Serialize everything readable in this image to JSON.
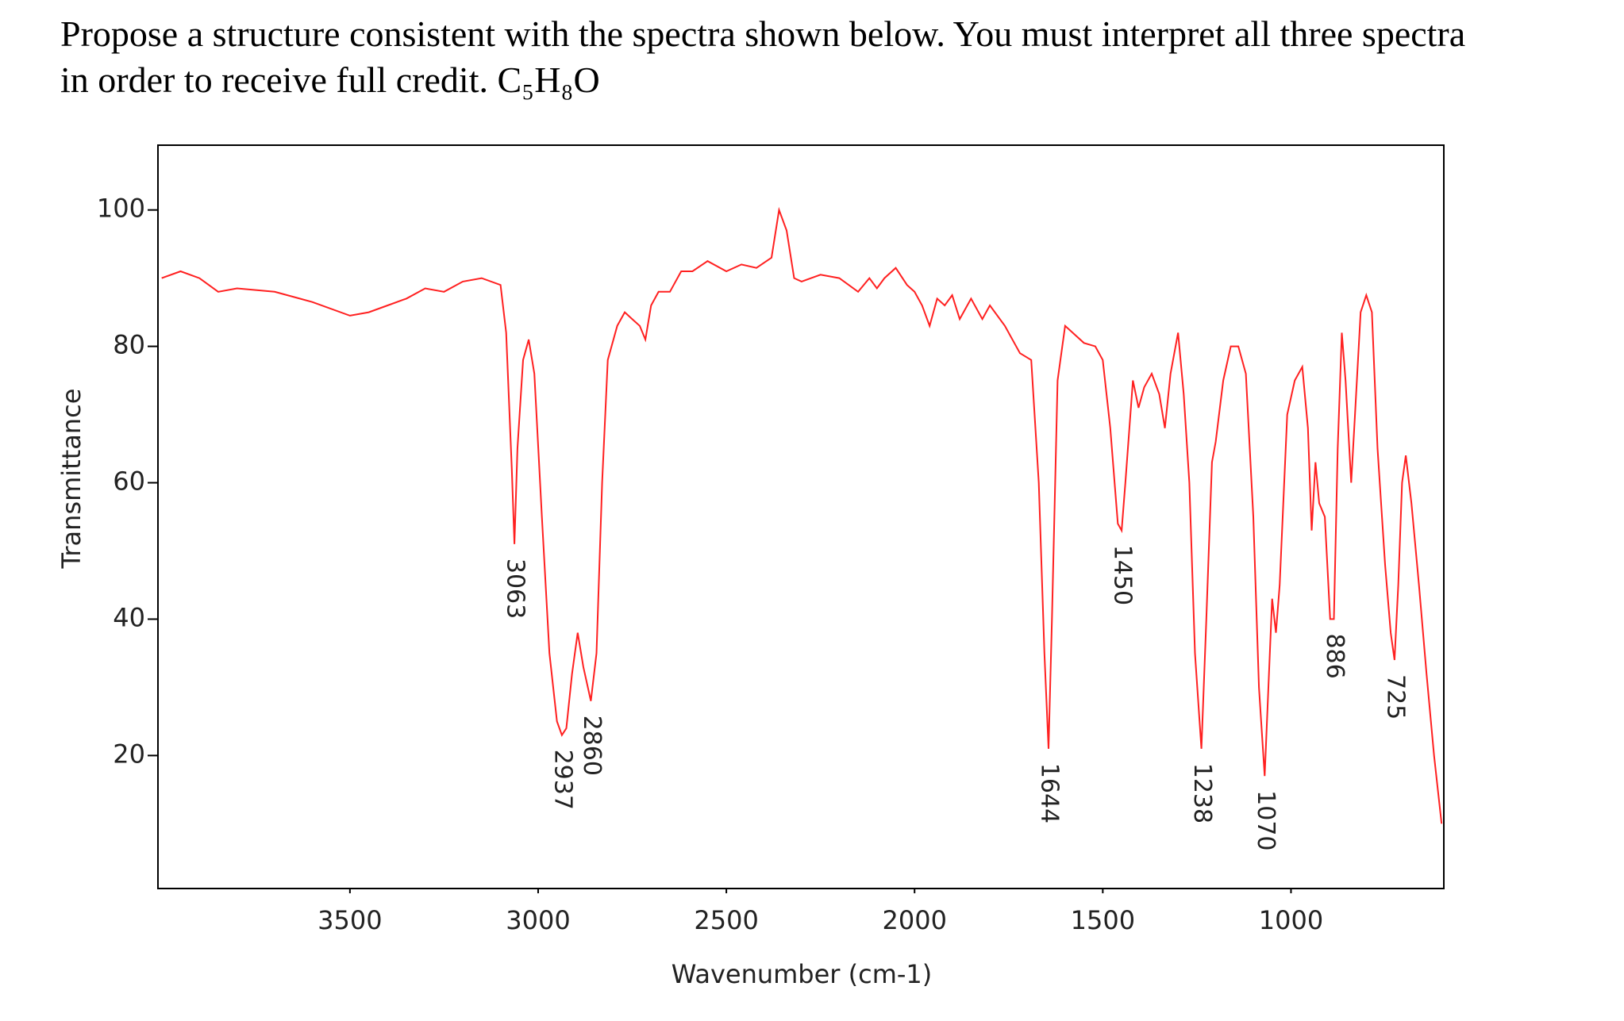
{
  "question_lines": [
    "Propose a structure consistent with the spectra shown below. You must interpret all three spectra",
    "in order to receive full credit. C₅H₈O"
  ],
  "chart_data": {
    "type": "line",
    "x_label": "Wavenumber (cm-1)",
    "y_label": "Transmittance",
    "xlim": [
      4010,
      594
    ],
    "ylim": [
      0.5,
      109.5
    ],
    "xticks": [
      3500,
      3000,
      2500,
      2000,
      1500,
      1000
    ],
    "yticks": [
      20,
      40,
      60,
      80,
      100
    ],
    "x": [
      4000,
      3950,
      3900,
      3850,
      3800,
      3700,
      3600,
      3500,
      3450,
      3400,
      3350,
      3300,
      3250,
      3200,
      3150,
      3100,
      3085,
      3070,
      3063,
      3055,
      3040,
      3025,
      3010,
      2990,
      2970,
      2950,
      2937,
      2925,
      2910,
      2895,
      2880,
      2860,
      2845,
      2830,
      2815,
      2790,
      2770,
      2750,
      2730,
      2715,
      2700,
      2680,
      2650,
      2620,
      2590,
      2550,
      2500,
      2460,
      2420,
      2380,
      2360,
      2340,
      2320,
      2300,
      2250,
      2200,
      2150,
      2120,
      2100,
      2080,
      2050,
      2020,
      2000,
      1980,
      1960,
      1940,
      1920,
      1900,
      1880,
      1850,
      1820,
      1800,
      1760,
      1720,
      1690,
      1670,
      1655,
      1644,
      1635,
      1620,
      1600,
      1580,
      1550,
      1520,
      1500,
      1480,
      1460,
      1450,
      1440,
      1420,
      1405,
      1390,
      1370,
      1350,
      1335,
      1320,
      1300,
      1285,
      1270,
      1255,
      1238,
      1225,
      1210,
      1200,
      1180,
      1160,
      1140,
      1120,
      1100,
      1085,
      1070,
      1060,
      1050,
      1040,
      1030,
      1010,
      990,
      970,
      955,
      945,
      935,
      925,
      910,
      896,
      886,
      876,
      865,
      855,
      840,
      830,
      815,
      800,
      785,
      770,
      750,
      735,
      725,
      715,
      705,
      695,
      680,
      660,
      640,
      620,
      600
    ],
    "series": [
      {
        "name": "Transmittance",
        "color": "#ff2020",
        "values": [
          90,
          91,
          90,
          88,
          88.5,
          88,
          86.5,
          84.5,
          85,
          86,
          87,
          88.5,
          88,
          89.5,
          90,
          89,
          82,
          62,
          51,
          65,
          78,
          81,
          76,
          55,
          35,
          25,
          23,
          24,
          32,
          38,
          33,
          28,
          35,
          60,
          78,
          83,
          85,
          84,
          83,
          81,
          86,
          88,
          88,
          91,
          91,
          92.5,
          91,
          92,
          91.5,
          93,
          100,
          97,
          90,
          89.5,
          90.5,
          90,
          88,
          90,
          88.5,
          90,
          91.5,
          89,
          88,
          86,
          83,
          87,
          86,
          87.5,
          84,
          87,
          84,
          86,
          83,
          79,
          78,
          60,
          35,
          21,
          40,
          75,
          83,
          82,
          80.5,
          80,
          78,
          68,
          54,
          53,
          60,
          75,
          71,
          74,
          76,
          73,
          68,
          76,
          82,
          73,
          60,
          35,
          21,
          40,
          63,
          66,
          75,
          80,
          80,
          76,
          55,
          30,
          17,
          30,
          43,
          38,
          45,
          70,
          75,
          77,
          68,
          53,
          63,
          57,
          55,
          40,
          40,
          65,
          82,
          75,
          60,
          70,
          85,
          87.5,
          85,
          65,
          48,
          38,
          34,
          45,
          60,
          64,
          57,
          45,
          32,
          20,
          10
        ]
      }
    ],
    "peak_labels": [
      3063,
      2937,
      2860,
      1644,
      1450,
      1238,
      1070,
      886,
      725
    ]
  }
}
